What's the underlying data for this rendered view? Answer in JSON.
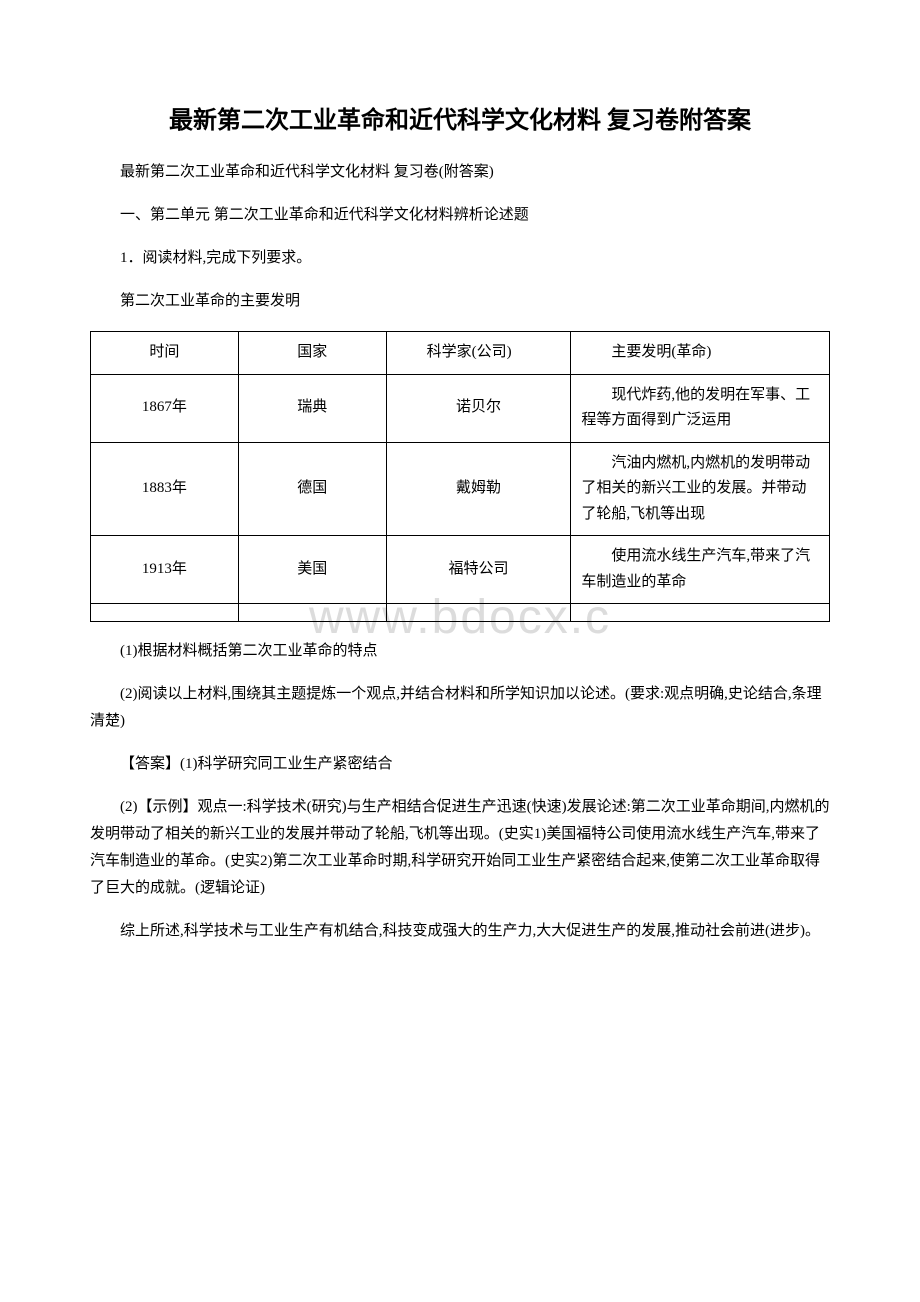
{
  "document": {
    "title": "最新第二次工业革命和近代科学文化材料 复习卷附答案",
    "intro": "最新第二次工业革命和近代科学文化材料 复习卷(附答案)",
    "section_heading": "一、第二单元 第二次工业革命和近代科学文化材料辨析论述题",
    "question_intro": "1．阅读材料,完成下列要求。",
    "table_caption": "第二次工业革命的主要发明",
    "watermark": "www.bdocx.c"
  },
  "table": {
    "headers": {
      "time": "时间",
      "country": "国家",
      "scientist": "科学家(公司)",
      "invention": "主要发明(革命)"
    },
    "rows": [
      {
        "time": "1867年",
        "country": "瑞典",
        "scientist": "诺贝尔",
        "invention": "现代炸药,他的发明在军事、工程等方面得到广泛运用"
      },
      {
        "time": "1883年",
        "country": "德国",
        "scientist": "戴姆勒",
        "invention": "汽油内燃机,内燃机的发明带动了相关的新兴工业的发展。并带动了轮船,飞机等出现"
      },
      {
        "time": "1913年",
        "country": "美国",
        "scientist": "福特公司",
        "invention": "使用流水线生产汽车,带来了汽车制造业的革命"
      }
    ]
  },
  "questions": {
    "q1": "(1)根据材料概括第二次工业革命的特点",
    "q2": "(2)阅读以上材料,围绕其主题提炼一个观点,并结合材料和所学知识加以论述。(要求:观点明确,史论结合,条理清楚)"
  },
  "answers": {
    "a1": "【答案】(1)科学研究同工业生产紧密结合",
    "a2": "(2)【示例】观点一:科学技术(研究)与生产相结合促进生产迅速(快速)发展论述:第二次工业革命期间,内燃机的发明带动了相关的新兴工业的发展并带动了轮船,飞机等出现。(史实1)美国福特公司使用流水线生产汽车,带来了汽车制造业的革命。(史实2)第二次工业革命时期,科学研究开始同工业生产紧密结合起来,使第二次工业革命取得了巨大的成就。(逻辑论证)",
    "a3": "综上所述,科学技术与工业生产有机结合,科技变成强大的生产力,大大促进生产的发展,推动社会前进(进步)。"
  },
  "styles": {
    "title_fontsize": 24,
    "body_fontsize": 15,
    "watermark_fontsize": 48,
    "watermark_color": "#dcdcdc",
    "text_color": "#000000",
    "background_color": "#ffffff",
    "border_color": "#000000",
    "line_height": 1.8
  }
}
